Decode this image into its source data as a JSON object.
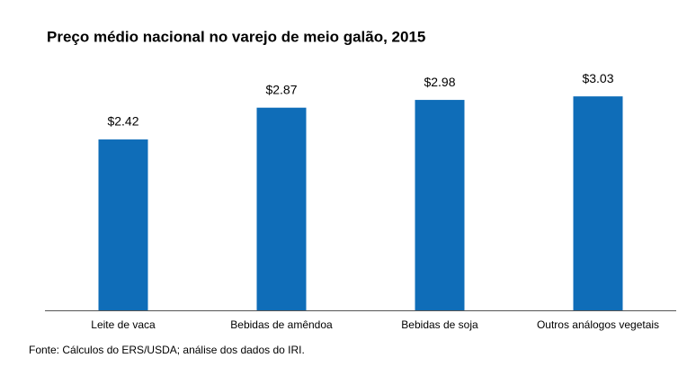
{
  "chart_data": {
    "type": "bar",
    "title": "Preço médio nacional no varejo de meio galão, 2015",
    "categories": [
      "Leite de vaca",
      "Bebidas de amêndoa",
      "Bebidas de soja",
      "Outros análogos vegetais"
    ],
    "values": [
      2.42,
      2.87,
      2.98,
      3.03
    ],
    "value_labels": [
      "$2.42",
      "$2.87",
      "$2.98",
      "$3.03"
    ],
    "color": "#0f6db8",
    "source": "Fonte: Cálculos do ERS/USDA; análise dos dados do IRI."
  }
}
